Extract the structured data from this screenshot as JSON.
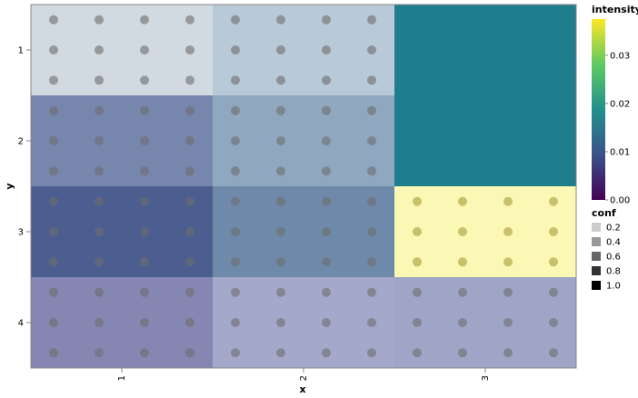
{
  "chart_data": {
    "type": "heatmap",
    "xlabel": "x",
    "ylabel": "y",
    "x_categories": [
      "1",
      "2",
      "3"
    ],
    "y_categories": [
      "1",
      "2",
      "3",
      "4"
    ],
    "cells": [
      {
        "x": "1",
        "y": "1",
        "color": "#d1d9e1"
      },
      {
        "x": "2",
        "y": "1",
        "color": "#b8c9d8"
      },
      {
        "x": "3",
        "y": "1",
        "color": "#1f7e8d"
      },
      {
        "x": "1",
        "y": "2",
        "color": "#7686ad"
      },
      {
        "x": "2",
        "y": "2",
        "color": "#8fa7bf"
      },
      {
        "x": "3",
        "y": "2",
        "color": "#1f7e8d"
      },
      {
        "x": "1",
        "y": "3",
        "color": "#4b5e8f"
      },
      {
        "x": "2",
        "y": "3",
        "color": "#6f89ab"
      },
      {
        "x": "3",
        "y": "3",
        "color": "#fbf7b4"
      },
      {
        "x": "1",
        "y": "4",
        "color": "#8586b1"
      },
      {
        "x": "2",
        "y": "4",
        "color": "#a4a8ca"
      },
      {
        "x": "3",
        "y": "4",
        "color": "#9fa5c6"
      }
    ],
    "points": {
      "x_offsets": [
        -0.375,
        -0.125,
        0.125,
        0.375
      ],
      "y_offsets": [
        -0.333,
        0,
        0.333
      ],
      "color": "#6e6e6e",
      "opacity": 0.6,
      "cell_rules": [
        {
          "x": "3",
          "y": "1",
          "show": false
        },
        {
          "x": "3",
          "y": "2",
          "show": false
        },
        {
          "x": "3",
          "y": "3",
          "show": true,
          "color": "#c8c06a",
          "opacity": 1
        }
      ]
    },
    "color_legend": {
      "title": "intensity",
      "stops": [
        "#440154",
        "#3b528b",
        "#21918c",
        "#5ec962",
        "#fde725"
      ],
      "ticks": [
        "0.00",
        "0.01",
        "0.02",
        "0.03"
      ],
      "tick_values": [
        0.0,
        0.01,
        0.02,
        0.03
      ],
      "domain": [
        0.0,
        0.0375
      ]
    },
    "conf_legend": {
      "title": "conf",
      "labels": [
        "0.2",
        "0.4",
        "0.6",
        "0.8",
        "1.0"
      ],
      "values": [
        0.2,
        0.4,
        0.6,
        0.8,
        1.0
      ]
    }
  }
}
